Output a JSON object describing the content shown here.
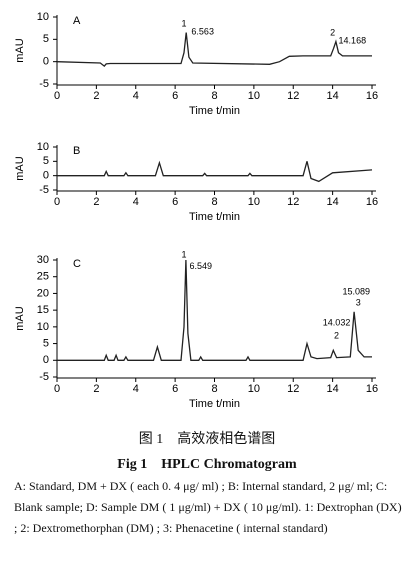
{
  "chart_data": [
    {
      "type": "line",
      "panel_label": "A",
      "ylabel": "mAU",
      "xlabel": "Time t/min",
      "xlim": [
        0,
        16
      ],
      "xticks": [
        0,
        2,
        4,
        6,
        8,
        10,
        12,
        14,
        16
      ],
      "ylim": [
        -5,
        10
      ],
      "yticks": [
        -5,
        0,
        5,
        10
      ],
      "series": [
        {
          "color": "#222",
          "x": [
            0,
            2.2,
            2.4,
            2.5,
            2.7,
            6.3,
            6.45,
            6.563,
            6.7,
            6.9,
            10.8,
            11.3,
            11.8,
            12.5,
            13.9,
            14.05,
            14.168,
            14.3,
            14.5,
            16
          ],
          "values": [
            0,
            -0.3,
            -1,
            -0.5,
            -0.4,
            -0.4,
            2,
            6.5,
            1,
            -0.3,
            -0.6,
            0,
            1.2,
            1.3,
            1.3,
            3,
            4.5,
            2,
            1.3,
            1.3
          ]
        }
      ],
      "annotations": [
        {
          "text": "1",
          "x": 6.45,
          "y": 8.4
        },
        {
          "text": "6.563",
          "x": 7.4,
          "y": 6.6
        },
        {
          "text": "2",
          "x": 14.0,
          "y": 6.4
        },
        {
          "text": "14.168",
          "x": 15.0,
          "y": 4.6
        }
      ]
    },
    {
      "type": "line",
      "panel_label": "B",
      "ylabel": "mAU",
      "xlabel": "Time t/min",
      "xlim": [
        0,
        16
      ],
      "xticks": [
        0,
        2,
        4,
        6,
        8,
        10,
        12,
        14,
        16
      ],
      "ylim": [
        -5,
        10
      ],
      "yticks": [
        -5,
        0,
        5,
        10
      ],
      "series": [
        {
          "color": "#222",
          "x": [
            0,
            2.4,
            2.5,
            2.6,
            3.4,
            3.5,
            3.6,
            5.0,
            5.2,
            5.4,
            7.4,
            7.5,
            7.6,
            9.7,
            9.8,
            9.9,
            12.5,
            12.7,
            12.9,
            13.3,
            14,
            16
          ],
          "values": [
            0,
            0,
            1.5,
            0,
            0,
            1,
            0,
            0,
            4.5,
            0,
            0,
            0.8,
            0,
            0,
            0.8,
            0,
            0,
            5,
            -1,
            -2,
            1,
            2
          ]
        }
      ],
      "annotations": []
    },
    {
      "type": "line",
      "panel_label": "C",
      "ylabel": "mAU",
      "xlabel": "Time t/min",
      "xlim": [
        0,
        16
      ],
      "xticks": [
        0,
        2,
        4,
        6,
        8,
        10,
        12,
        14,
        16
      ],
      "ylim": [
        -5,
        30
      ],
      "yticks": [
        -5,
        0,
        5,
        10,
        15,
        20,
        25,
        30
      ],
      "series": [
        {
          "color": "#222",
          "x": [
            0,
            2.4,
            2.5,
            2.6,
            2.9,
            3.0,
            3.1,
            3.4,
            3.5,
            3.6,
            4.9,
            5.1,
            5.3,
            6.3,
            6.45,
            6.549,
            6.65,
            6.8,
            7.2,
            7.3,
            7.4,
            9.6,
            9.7,
            9.8,
            12.5,
            12.7,
            12.9,
            13.2,
            13.9,
            14.032,
            14.2,
            14.9,
            15.089,
            15.3,
            15.6,
            16
          ],
          "values": [
            0,
            0,
            1.5,
            0,
            0,
            1.5,
            0,
            0,
            1,
            0,
            0,
            4,
            0,
            0,
            10,
            30,
            8,
            0,
            0,
            1,
            0,
            0,
            1,
            0,
            0,
            5,
            1,
            0.5,
            0.8,
            3,
            0.8,
            1,
            14.5,
            3,
            1,
            1
          ]
        }
      ],
      "annotations": [
        {
          "text": "1",
          "x": 6.45,
          "y": 31.5
        },
        {
          "text": "6.549",
          "x": 7.3,
          "y": 28
        },
        {
          "text": "14.032",
          "x": 14.2,
          "y": 11.1
        },
        {
          "text": "2",
          "x": 14.2,
          "y": 7.2
        },
        {
          "text": "15.089",
          "x": 15.2,
          "y": 20.4
        },
        {
          "text": "3",
          "x": 15.3,
          "y": 17.1
        }
      ]
    }
  ],
  "caption": {
    "zh": "图 1　高效液相色谱图",
    "en": "Fig 1　HPLC Chromatogram",
    "note": "A: Standard, DM + DX ( each 0. 4 μg/ ml) ; B: Internal standard, 2 μg/ ml; C: Blank sample; D: Sample DM ( 1 μg/ml) + DX ( 10 μg/ml). 1: Dextrophan (DX) ; 2: Dextromethorphan (DM) ; 3: Phenacetine ( internal standard)"
  }
}
